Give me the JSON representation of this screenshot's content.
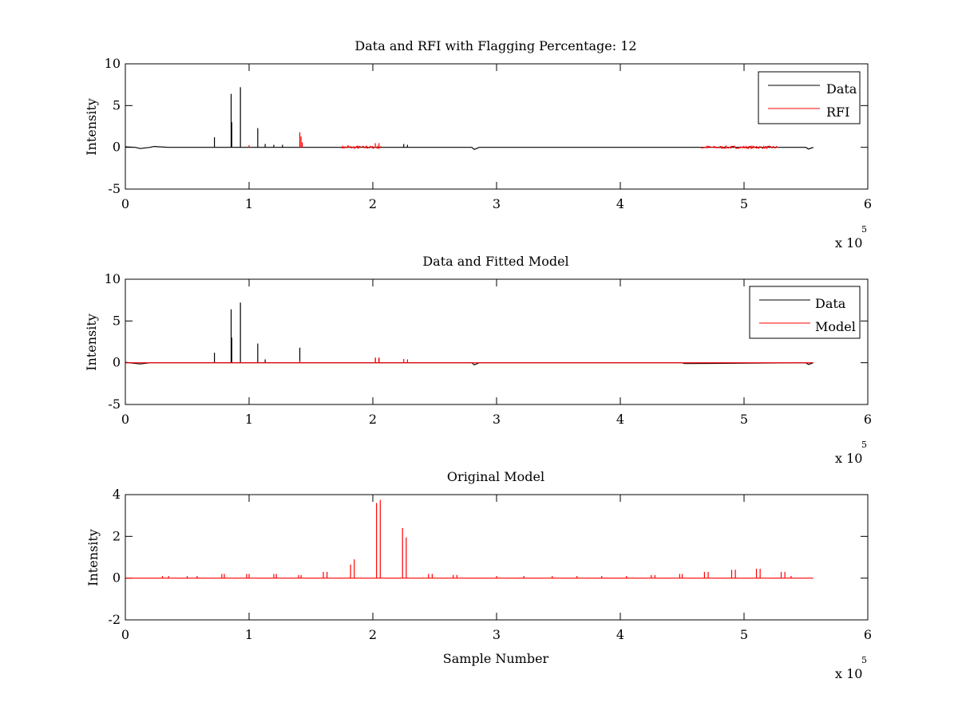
{
  "figure": {
    "background": "#ffffff"
  },
  "chart_data": [
    {
      "type": "line",
      "title": "Data and RFI with Flagging Percentage: 12",
      "xlabel": "",
      "ylabel": "Intensity",
      "xlim": [
        0,
        6
      ],
      "ylim": [
        -5,
        10
      ],
      "xticks": [
        "0",
        "1",
        "2",
        "3",
        "4",
        "5",
        "6"
      ],
      "yticks": [
        "-5",
        "0",
        "5",
        "10"
      ],
      "x_multiplier": {
        "base": "x 10",
        "exponent": "5"
      },
      "legend": {
        "placement": "top-right"
      },
      "series": [
        {
          "name": "Data",
          "color": "#000000",
          "baseline": [
            [
              0.0,
              0.05
            ],
            [
              0.08,
              0.0
            ],
            [
              0.12,
              -0.15
            ],
            [
              0.2,
              0.0
            ],
            [
              0.23,
              0.1
            ],
            [
              0.35,
              0.0
            ],
            [
              1.0,
              0.0
            ],
            [
              2.8,
              0.0
            ],
            [
              2.82,
              -0.25
            ],
            [
              2.86,
              0.0
            ],
            [
              5.5,
              0.0
            ],
            [
              5.52,
              -0.2
            ],
            [
              5.56,
              0.0
            ]
          ],
          "spikes": [
            [
              0.72,
              1.2
            ],
            [
              0.855,
              6.4
            ],
            [
              0.86,
              3.0
            ],
            [
              0.93,
              7.2
            ],
            [
              1.07,
              2.3
            ],
            [
              1.13,
              0.4
            ],
            [
              1.2,
              0.3
            ],
            [
              1.27,
              0.3
            ],
            [
              2.25,
              0.4
            ],
            [
              2.28,
              0.3
            ]
          ]
        },
        {
          "name": "RFI",
          "color": "#ff0000",
          "baseline": [],
          "spikes": [
            [
              1.0,
              0.25
            ],
            [
              1.41,
              1.8
            ],
            [
              1.42,
              1.3
            ],
            [
              1.43,
              0.6
            ],
            [
              1.8,
              0.25
            ],
            [
              1.88,
              0.2
            ],
            [
              1.95,
              0.2
            ],
            [
              2.02,
              0.5
            ],
            [
              2.05,
              0.5
            ],
            [
              4.7,
              0.2
            ],
            [
              4.85,
              0.15
            ],
            [
              4.92,
              0.2
            ],
            [
              5.1,
              0.15
            ],
            [
              5.2,
              0.1
            ]
          ],
          "noise_bands": [
            [
              1.75,
              2.07
            ],
            [
              4.65,
              5.28
            ]
          ]
        }
      ]
    },
    {
      "type": "line",
      "title": "Data and Fitted Model",
      "xlabel": "",
      "ylabel": "Intensity",
      "xlim": [
        0,
        6
      ],
      "ylim": [
        -5,
        10
      ],
      "xticks": [
        "0",
        "1",
        "2",
        "3",
        "4",
        "5",
        "6"
      ],
      "yticks": [
        "-5",
        "0",
        "5",
        "10"
      ],
      "x_multiplier": {
        "base": "x 10",
        "exponent": "5"
      },
      "legend": {
        "placement": "top-right"
      },
      "series": [
        {
          "name": "Data",
          "color": "#000000",
          "baseline": [
            [
              0.0,
              0.05
            ],
            [
              0.12,
              -0.15
            ],
            [
              0.2,
              0.0
            ],
            [
              2.8,
              0.0
            ],
            [
              2.82,
              -0.25
            ],
            [
              2.86,
              0.0
            ],
            [
              4.5,
              0.0
            ],
            [
              4.52,
              -0.1
            ],
            [
              5.5,
              0.0
            ],
            [
              5.52,
              -0.2
            ],
            [
              5.56,
              0.0
            ]
          ],
          "spikes": [
            [
              0.72,
              1.2
            ],
            [
              0.855,
              6.4
            ],
            [
              0.86,
              3.0
            ],
            [
              0.93,
              7.2
            ],
            [
              1.07,
              2.3
            ],
            [
              1.13,
              0.4
            ],
            [
              1.41,
              1.8
            ],
            [
              2.02,
              0.6
            ],
            [
              2.05,
              0.6
            ]
          ]
        },
        {
          "name": "Model",
          "color": "#ff0000",
          "baseline": [
            [
              0.0,
              0.0
            ],
            [
              5.56,
              0.0
            ]
          ],
          "spikes": [
            [
              2.02,
              0.6
            ],
            [
              2.05,
              0.6
            ],
            [
              2.25,
              0.45
            ],
            [
              2.28,
              0.4
            ],
            [
              1.41,
              0.25
            ]
          ]
        }
      ]
    },
    {
      "type": "line",
      "title": "Original Model",
      "xlabel": "Sample Number",
      "ylabel": "Intensity",
      "xlim": [
        0,
        6
      ],
      "ylim": [
        -2,
        4
      ],
      "xticks": [
        "0",
        "1",
        "2",
        "3",
        "4",
        "5",
        "6"
      ],
      "yticks": [
        "-2",
        "0",
        "2",
        "4"
      ],
      "x_multiplier": {
        "base": "x 10",
        "exponent": "5"
      },
      "series": [
        {
          "color": "#ff0000",
          "baseline": [
            [
              0.0,
              0.0
            ],
            [
              5.56,
              0.0
            ]
          ],
          "spikes": [
            [
              0.3,
              0.1
            ],
            [
              0.35,
              0.1
            ],
            [
              0.5,
              0.1
            ],
            [
              0.58,
              0.1
            ],
            [
              0.78,
              0.2
            ],
            [
              0.8,
              0.2
            ],
            [
              0.98,
              0.2
            ],
            [
              1.0,
              0.2
            ],
            [
              1.2,
              0.2
            ],
            [
              1.22,
              0.2
            ],
            [
              1.4,
              0.15
            ],
            [
              1.42,
              0.15
            ],
            [
              1.6,
              0.3
            ],
            [
              1.63,
              0.3
            ],
            [
              1.82,
              0.65
            ],
            [
              1.85,
              0.9
            ],
            [
              2.03,
              3.6
            ],
            [
              2.06,
              3.75
            ],
            [
              2.24,
              2.4
            ],
            [
              2.27,
              1.95
            ],
            [
              2.45,
              0.2
            ],
            [
              2.48,
              0.2
            ],
            [
              2.65,
              0.15
            ],
            [
              2.68,
              0.15
            ],
            [
              3.0,
              0.1
            ],
            [
              3.22,
              0.1
            ],
            [
              3.45,
              0.1
            ],
            [
              3.65,
              0.1
            ],
            [
              3.85,
              0.1
            ],
            [
              4.05,
              0.1
            ],
            [
              4.25,
              0.15
            ],
            [
              4.28,
              0.15
            ],
            [
              4.48,
              0.2
            ],
            [
              4.5,
              0.2
            ],
            [
              4.68,
              0.3
            ],
            [
              4.71,
              0.3
            ],
            [
              4.9,
              0.4
            ],
            [
              4.93,
              0.4
            ],
            [
              5.1,
              0.45
            ],
            [
              5.13,
              0.45
            ],
            [
              5.3,
              0.3
            ],
            [
              5.33,
              0.3
            ],
            [
              5.38,
              0.1
            ]
          ]
        }
      ]
    }
  ]
}
